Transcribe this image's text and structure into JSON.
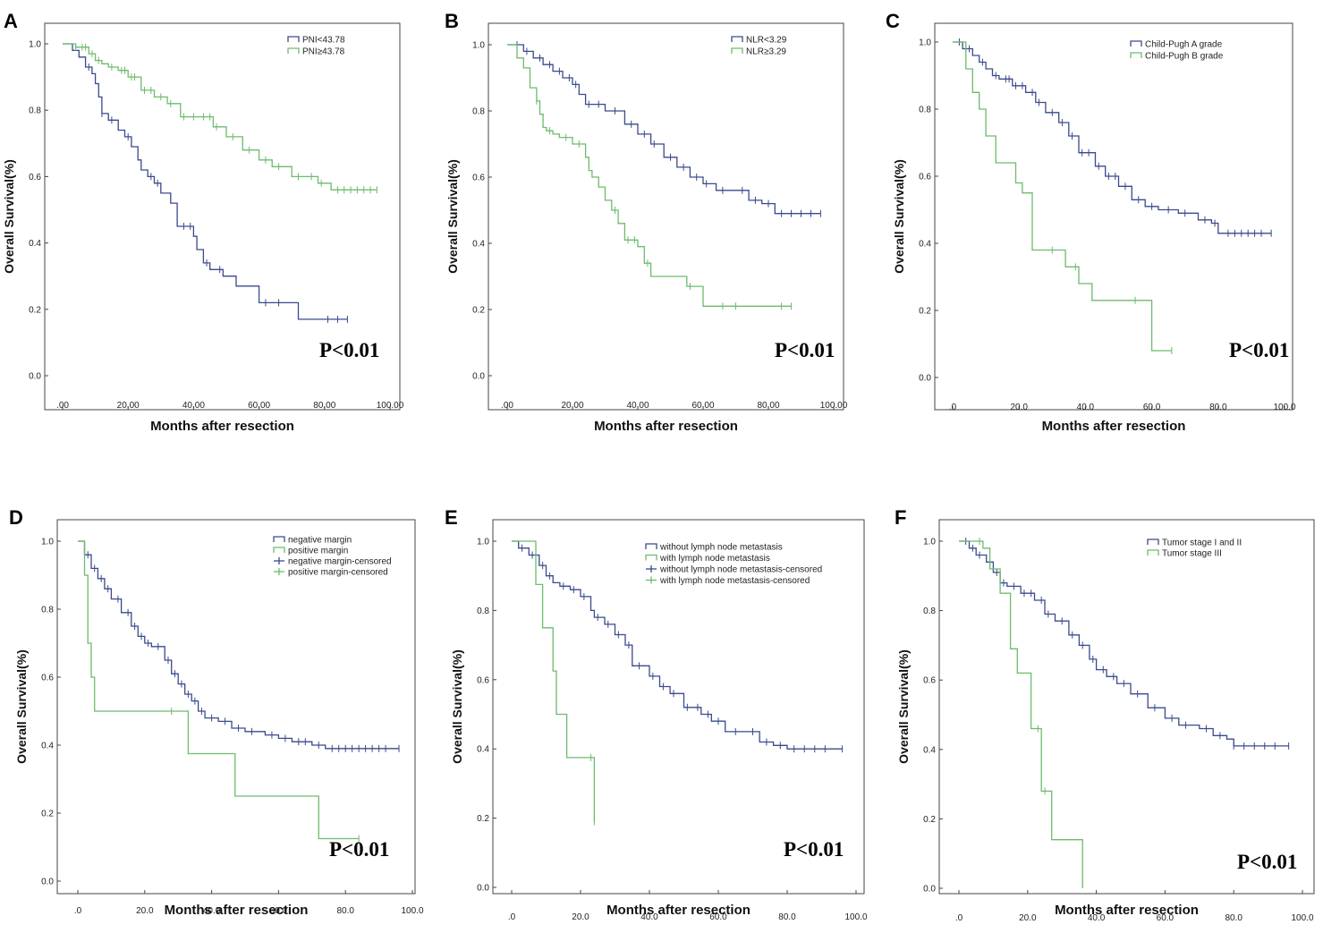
{
  "colors": {
    "blue": "#3a4a8c",
    "green": "#6dbb6d",
    "frame": "#444444"
  },
  "chart_data": [
    {
      "id": "A",
      "type": "line",
      "step": true,
      "letter": "A",
      "xlabel": "Months after resection",
      "ylabel": "Overall Survival(%)",
      "xlim": [
        0,
        100
      ],
      "ylim": [
        0,
        1
      ],
      "xticks": [
        ".00",
        "20.00",
        "40.00",
        "60.00",
        "80.00",
        "100.00"
      ],
      "yticks": [
        "0.0",
        "0.2",
        "0.4",
        "0.6",
        "0.8",
        "1.0"
      ],
      "pvalue": "P<0.01",
      "series": [
        {
          "name": "PNI<43.78",
          "color": "#3a4a8c",
          "x": [
            0,
            3,
            5,
            7,
            9,
            10,
            11,
            12,
            14,
            17,
            19,
            21,
            23,
            24,
            26,
            28,
            30,
            33,
            35,
            38,
            40,
            41,
            43,
            45,
            49,
            53,
            60,
            72,
            80,
            87
          ],
          "y": [
            1.0,
            0.98,
            0.96,
            0.93,
            0.91,
            0.88,
            0.84,
            0.79,
            0.77,
            0.74,
            0.72,
            0.69,
            0.65,
            0.62,
            0.6,
            0.58,
            0.55,
            0.52,
            0.45,
            0.45,
            0.42,
            0.38,
            0.34,
            0.32,
            0.3,
            0.27,
            0.22,
            0.17,
            0.17,
            0.17
          ],
          "censor": [
            8,
            12,
            15,
            20,
            27,
            29,
            37,
            39,
            44,
            48,
            62,
            66,
            81,
            84,
            87
          ]
        },
        {
          "name": "PNI≥43.78",
          "color": "#6dbb6d",
          "x": [
            0,
            4,
            8,
            10,
            12,
            14,
            17,
            20,
            24,
            28,
            32,
            36,
            42,
            46,
            50,
            55,
            60,
            64,
            70,
            78,
            82,
            96
          ],
          "y": [
            1.0,
            0.99,
            0.97,
            0.95,
            0.94,
            0.93,
            0.92,
            0.9,
            0.86,
            0.84,
            0.82,
            0.78,
            0.78,
            0.75,
            0.72,
            0.68,
            0.65,
            0.63,
            0.6,
            0.58,
            0.56,
            0.56
          ],
          "censor": [
            4,
            6,
            7,
            9,
            11,
            15,
            18,
            19,
            21,
            22,
            25,
            27,
            30,
            33,
            37,
            40,
            43,
            45,
            47,
            52,
            57,
            62,
            66,
            72,
            76,
            79,
            84,
            86,
            88,
            90,
            92,
            94,
            96
          ]
        }
      ]
    },
    {
      "id": "B",
      "type": "line",
      "step": true,
      "letter": "B",
      "xlabel": "Months after resection",
      "ylabel": "Overall Survival(%)",
      "xlim": [
        0,
        100
      ],
      "ylim": [
        0,
        1
      ],
      "xticks": [
        ".00",
        "20.00",
        "40.00",
        "60.00",
        "80.00",
        "100.00"
      ],
      "yticks": [
        "0.0",
        "0.2",
        "0.4",
        "0.6",
        "0.8",
        "1.0"
      ],
      "pvalue": "P<0.01",
      "series": [
        {
          "name": "NLR<3.29",
          "color": "#3a4a8c",
          "x": [
            0,
            5,
            8,
            11,
            14,
            17,
            20,
            22,
            24,
            26,
            30,
            36,
            40,
            44,
            48,
            52,
            56,
            60,
            64,
            70,
            74,
            78,
            82,
            96
          ],
          "y": [
            1.0,
            0.98,
            0.96,
            0.94,
            0.92,
            0.9,
            0.88,
            0.85,
            0.82,
            0.82,
            0.8,
            0.76,
            0.73,
            0.7,
            0.66,
            0.63,
            0.6,
            0.58,
            0.56,
            0.56,
            0.53,
            0.52,
            0.49,
            0.49
          ],
          "censor": [
            3,
            6,
            10,
            13,
            16,
            19,
            21,
            25,
            28,
            33,
            38,
            42,
            45,
            50,
            54,
            58,
            61,
            66,
            72,
            76,
            80,
            84,
            87,
            90,
            93,
            96
          ]
        },
        {
          "name": "NLR≥3.29",
          "color": "#6dbb6d",
          "x": [
            0,
            3,
            5,
            7,
            9,
            10,
            11,
            12,
            14,
            16,
            20,
            24,
            25,
            26,
            28,
            30,
            32,
            34,
            36,
            40,
            42,
            44,
            50,
            55,
            60,
            87
          ],
          "y": [
            1.0,
            0.96,
            0.93,
            0.87,
            0.83,
            0.79,
            0.75,
            0.74,
            0.73,
            0.72,
            0.7,
            0.66,
            0.62,
            0.6,
            0.57,
            0.53,
            0.5,
            0.46,
            0.41,
            0.39,
            0.34,
            0.3,
            0.3,
            0.27,
            0.21,
            0.21
          ],
          "censor": [
            9,
            13,
            18,
            22,
            33,
            37,
            39,
            43,
            56,
            66,
            70,
            84,
            87
          ]
        }
      ]
    },
    {
      "id": "C",
      "type": "line",
      "step": true,
      "letter": "C",
      "xlabel": "Months after resection",
      "ylabel": "Overall Survival(%)",
      "xlim": [
        0,
        100
      ],
      "ylim": [
        0,
        1
      ],
      "xticks": [
        ".0",
        "20.0",
        "40.0",
        "60.0",
        "80.0",
        "100.0"
      ],
      "yticks": [
        "0.0",
        "0.2",
        "0.4",
        "0.6",
        "0.8",
        "1.0"
      ],
      "pvalue": "P<0.01",
      "series": [
        {
          "name": "Child-Pugh A grade",
          "color": "#3a4a8c",
          "x": [
            0,
            3,
            6,
            8,
            10,
            12,
            14,
            18,
            22,
            25,
            28,
            32,
            35,
            38,
            40,
            43,
            46,
            50,
            54,
            58,
            62,
            68,
            74,
            78,
            80,
            96
          ],
          "y": [
            1.0,
            0.98,
            0.96,
            0.94,
            0.92,
            0.9,
            0.89,
            0.87,
            0.85,
            0.82,
            0.79,
            0.76,
            0.72,
            0.67,
            0.67,
            0.63,
            0.6,
            0.57,
            0.53,
            0.51,
            0.5,
            0.49,
            0.47,
            0.46,
            0.43,
            0.43
          ],
          "censor": [
            2,
            4,
            5,
            9,
            13,
            16,
            17,
            19,
            21,
            24,
            26,
            30,
            33,
            36,
            39,
            41,
            44,
            47,
            49,
            52,
            56,
            60,
            65,
            70,
            76,
            79,
            83,
            85,
            87,
            89,
            91,
            93,
            96
          ]
        },
        {
          "name": "Child-Pugh B grade",
          "color": "#6dbb6d",
          "x": [
            0,
            4,
            6,
            8,
            10,
            13,
            19,
            21,
            24,
            34,
            38,
            42,
            60,
            66
          ],
          "y": [
            1.0,
            0.92,
            0.85,
            0.8,
            0.72,
            0.64,
            0.58,
            0.55,
            0.38,
            0.33,
            0.28,
            0.23,
            0.08,
            0.08
          ],
          "censor": [
            30,
            37,
            55,
            66
          ]
        }
      ]
    },
    {
      "id": "D",
      "type": "line",
      "step": true,
      "letter": "D",
      "xlabel": "Months after resection",
      "ylabel": "Overall Survival(%)",
      "xlim": [
        0,
        100
      ],
      "ylim": [
        0,
        1
      ],
      "xticks": [
        ".0",
        "20.0",
        "40.0",
        "60.0",
        "80.0",
        "100.0"
      ],
      "yticks": [
        "0.0",
        "0.2",
        "0.4",
        "0.6",
        "0.8",
        "1.0"
      ],
      "pvalue": "P<0.01",
      "legend": [
        "negative margin",
        "positive margin",
        "negative margin-censored",
        "positive margin-censored"
      ],
      "series": [
        {
          "name": "negative margin",
          "color": "#3a4a8c",
          "x": [
            0,
            2,
            4,
            6,
            8,
            10,
            13,
            16,
            18,
            20,
            22,
            26,
            28,
            30,
            32,
            34,
            36,
            38,
            42,
            46,
            50,
            56,
            60,
            64,
            70,
            74,
            96
          ],
          "y": [
            1.0,
            0.96,
            0.92,
            0.89,
            0.86,
            0.83,
            0.79,
            0.75,
            0.72,
            0.7,
            0.69,
            0.65,
            0.61,
            0.58,
            0.55,
            0.53,
            0.5,
            0.48,
            0.47,
            0.45,
            0.44,
            0.43,
            0.42,
            0.41,
            0.4,
            0.39,
            0.39
          ],
          "censor": [
            3,
            5,
            7,
            9,
            12,
            15,
            17,
            19,
            21,
            24,
            27,
            29,
            31,
            33,
            35,
            37,
            40,
            44,
            48,
            52,
            58,
            62,
            66,
            68,
            72,
            76,
            78,
            80,
            82,
            84,
            86,
            88,
            90,
            92,
            96
          ]
        },
        {
          "name": "positive margin",
          "color": "#6dbb6d",
          "x": [
            0,
            2,
            3,
            4,
            5,
            33,
            47,
            72,
            84
          ],
          "y": [
            1.0,
            0.9,
            0.7,
            0.6,
            0.5,
            0.375,
            0.25,
            0.125,
            0.125
          ],
          "censor": [
            28,
            84
          ]
        }
      ]
    },
    {
      "id": "E",
      "type": "line",
      "step": true,
      "letter": "E",
      "xlabel": "Months after resection",
      "ylabel": "Overall Survival(%)",
      "xlim": [
        0,
        100
      ],
      "ylim": [
        0,
        1
      ],
      "xticks": [
        ".0",
        "20.0",
        "40.0",
        "60.0",
        "80.0",
        "100.0"
      ],
      "yticks": [
        "0.0",
        "0.2",
        "0.4",
        "0.6",
        "0.8",
        "1.0"
      ],
      "pvalue": "P<0.01",
      "legend": [
        "without lymph node metastasis",
        "with lymph node metastasis",
        "without lymph node metastasis-censored",
        "with lymph node metastasis-censored"
      ],
      "series": [
        {
          "name": "without lymph node metastasis",
          "color": "#3a4a8c",
          "x": [
            0,
            2,
            5,
            8,
            10,
            12,
            14,
            17,
            20,
            23,
            24,
            27,
            30,
            33,
            35,
            40,
            43,
            46,
            50,
            55,
            58,
            62,
            68,
            72,
            76,
            80,
            96
          ],
          "y": [
            1.0,
            0.98,
            0.96,
            0.93,
            0.9,
            0.88,
            0.87,
            0.86,
            0.84,
            0.8,
            0.78,
            0.76,
            0.73,
            0.7,
            0.64,
            0.61,
            0.58,
            0.56,
            0.52,
            0.5,
            0.48,
            0.45,
            0.45,
            0.42,
            0.41,
            0.4,
            0.4
          ],
          "censor": [
            3,
            6,
            9,
            11,
            15,
            18,
            21,
            25,
            28,
            31,
            34,
            37,
            41,
            44,
            47,
            51,
            54,
            57,
            60,
            65,
            70,
            74,
            78,
            82,
            85,
            88,
            91,
            96
          ]
        },
        {
          "name": "with lymph node metastasis",
          "color": "#6dbb6d",
          "x": [
            0,
            7,
            9,
            12,
            13,
            16,
            23,
            24,
            24
          ],
          "y": [
            1.0,
            0.875,
            0.75,
            0.625,
            0.5,
            0.375,
            0.375,
            0.19,
            0.19
          ],
          "censor": [
            23,
            24
          ]
        }
      ]
    },
    {
      "id": "F",
      "type": "line",
      "step": true,
      "letter": "F",
      "xlabel": "Months after resection",
      "ylabel": "Overall Survival(%)",
      "xlim": [
        0,
        100
      ],
      "ylim": [
        0,
        1
      ],
      "xticks": [
        ".0",
        "20.0",
        "40.0",
        "60.0",
        "80.0",
        "100.0"
      ],
      "yticks": [
        "0.0",
        "0.2",
        "0.4",
        "0.6",
        "0.8",
        "1.0"
      ],
      "pvalue": "P<0.01",
      "series": [
        {
          "name": "Tumor stage I and II",
          "color": "#3a4a8c",
          "x": [
            0,
            3,
            5,
            8,
            10,
            12,
            14,
            18,
            22,
            25,
            28,
            32,
            35,
            38,
            40,
            43,
            46,
            50,
            55,
            60,
            64,
            70,
            74,
            78,
            80,
            96
          ],
          "y": [
            1.0,
            0.98,
            0.96,
            0.94,
            0.91,
            0.88,
            0.87,
            0.85,
            0.83,
            0.79,
            0.77,
            0.73,
            0.7,
            0.66,
            0.63,
            0.61,
            0.59,
            0.56,
            0.52,
            0.49,
            0.47,
            0.46,
            0.44,
            0.43,
            0.41,
            0.41
          ],
          "censor": [
            2,
            4,
            6,
            9,
            11,
            13,
            16,
            19,
            21,
            24,
            26,
            30,
            33,
            36,
            39,
            42,
            45,
            48,
            52,
            57,
            62,
            66,
            72,
            76,
            80,
            83,
            86,
            89,
            92,
            96
          ]
        },
        {
          "name": "Tumor stage III",
          "color": "#6dbb6d",
          "x": [
            0,
            7,
            9,
            12,
            15,
            17,
            21,
            24,
            27,
            36,
            36
          ],
          "y": [
            1.0,
            0.98,
            0.92,
            0.85,
            0.69,
            0.62,
            0.46,
            0.28,
            0.14,
            0.14,
            0.0
          ],
          "censor": [
            6,
            23,
            25
          ]
        }
      ]
    }
  ]
}
